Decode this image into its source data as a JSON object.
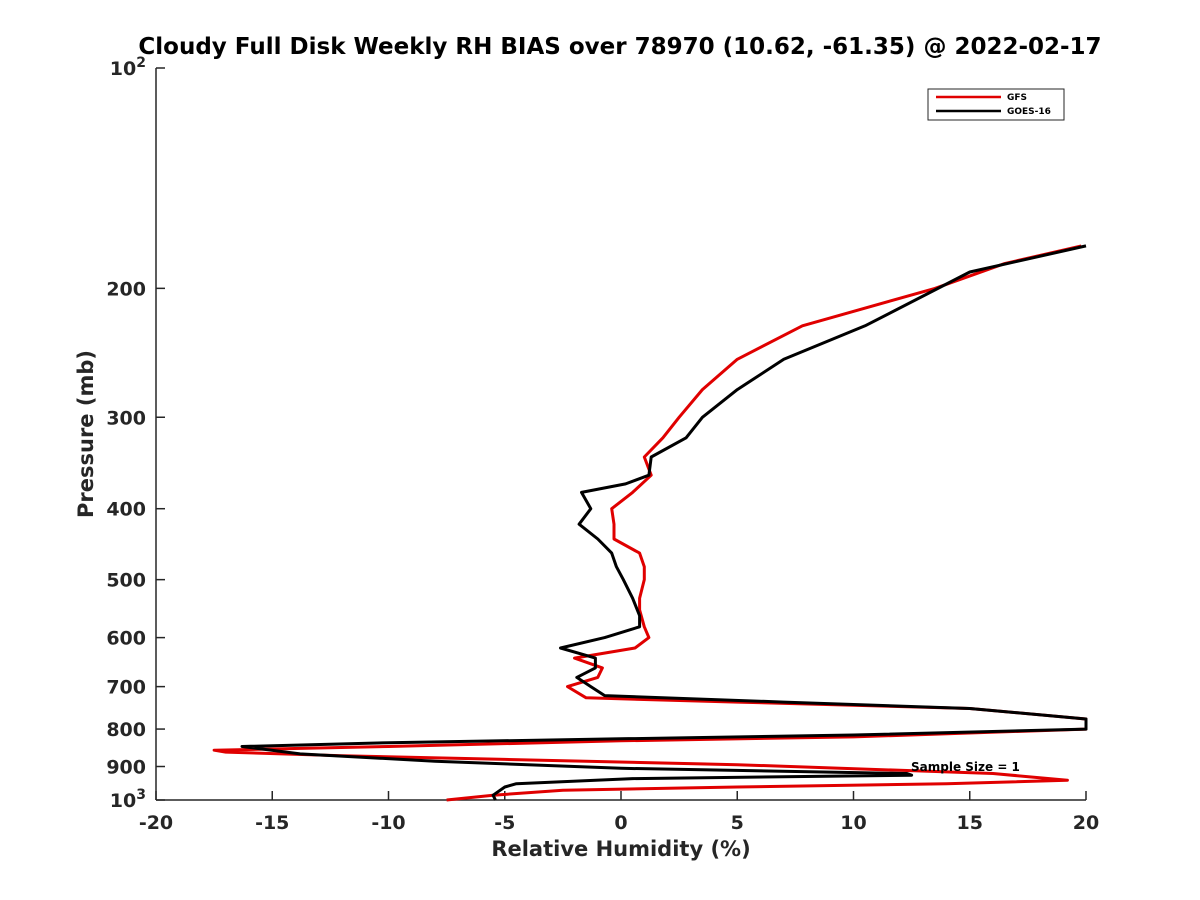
{
  "chart_data": {
    "type": "line",
    "title": "Cloudy Full Disk Weekly RH BIAS over 78970 (10.62, -61.35) @ 2022-02-17",
    "xlabel": "Relative Humidity (%)",
    "ylabel": "Pressure (mb)",
    "xlim": [
      -20,
      20
    ],
    "ylim": [
      100,
      1000
    ],
    "y_scale": "log",
    "y_reversed": true,
    "grid": false,
    "legend_position": "top-right",
    "x_ticks": [
      "-20",
      "-15",
      "-10",
      "-5",
      "0",
      "5",
      "10",
      "15",
      "20"
    ],
    "y_ticks": [
      {
        "base": "10",
        "exp": "2"
      },
      {
        "base": "200",
        "exp": ""
      },
      {
        "base": "300",
        "exp": ""
      },
      {
        "base": "400",
        "exp": ""
      },
      {
        "base": "500",
        "exp": ""
      },
      {
        "base": "600",
        "exp": ""
      },
      {
        "base": "700",
        "exp": ""
      },
      {
        "base": "800",
        "exp": ""
      },
      {
        "base": "900",
        "exp": ""
      },
      {
        "base": "10",
        "exp": "3"
      }
    ],
    "series": [
      {
        "name": "GFS",
        "color": "#e00000",
        "points": [
          [
            19.8,
            175
          ],
          [
            16.5,
            185
          ],
          [
            13.5,
            200
          ],
          [
            7.8,
            225
          ],
          [
            5.0,
            250
          ],
          [
            3.5,
            275
          ],
          [
            2.5,
            300
          ],
          [
            1.8,
            320
          ],
          [
            1.0,
            340
          ],
          [
            1.3,
            360
          ],
          [
            0.5,
            380
          ],
          [
            -0.4,
            400
          ],
          [
            -0.3,
            420
          ],
          [
            -0.3,
            440
          ],
          [
            0.8,
            460
          ],
          [
            1.0,
            480
          ],
          [
            1.0,
            500
          ],
          [
            0.8,
            530
          ],
          [
            0.8,
            550
          ],
          [
            1.0,
            580
          ],
          [
            1.2,
            600
          ],
          [
            0.6,
            620
          ],
          [
            -2.0,
            640
          ],
          [
            -0.8,
            660
          ],
          [
            -1.0,
            680
          ],
          [
            -2.3,
            700
          ],
          [
            -1.5,
            725
          ],
          [
            5.0,
            735
          ],
          [
            15.0,
            750
          ],
          [
            20.0,
            775
          ],
          [
            20.0,
            800
          ],
          [
            10.0,
            820
          ],
          [
            0.0,
            830
          ],
          [
            -10.0,
            845
          ],
          [
            -17.5,
            855
          ],
          [
            -17.0,
            860
          ],
          [
            -12.0,
            870
          ],
          [
            -5.0,
            880
          ],
          [
            5.0,
            895
          ],
          [
            16.0,
            920
          ],
          [
            19.2,
            940
          ],
          [
            14.0,
            950
          ],
          [
            5.0,
            960
          ],
          [
            -2.5,
            970
          ],
          [
            -5.5,
            985
          ],
          [
            -7.5,
            1000
          ]
        ]
      },
      {
        "name": "GOES-16",
        "color": "#000000",
        "points": [
          [
            20.0,
            175
          ],
          [
            15.0,
            190
          ],
          [
            10.5,
            225
          ],
          [
            7.0,
            250
          ],
          [
            5.0,
            275
          ],
          [
            3.5,
            300
          ],
          [
            2.8,
            320
          ],
          [
            1.3,
            340
          ],
          [
            1.2,
            360
          ],
          [
            0.2,
            370
          ],
          [
            -1.7,
            380
          ],
          [
            -1.3,
            400
          ],
          [
            -1.8,
            420
          ],
          [
            -1.0,
            440
          ],
          [
            -0.4,
            460
          ],
          [
            -0.2,
            480
          ],
          [
            0.1,
            500
          ],
          [
            0.5,
            530
          ],
          [
            0.8,
            560
          ],
          [
            0.8,
            580
          ],
          [
            -0.7,
            600
          ],
          [
            -2.6,
            620
          ],
          [
            -1.1,
            640
          ],
          [
            -1.1,
            660
          ],
          [
            -1.9,
            680
          ],
          [
            -1.3,
            700
          ],
          [
            -0.7,
            720
          ],
          [
            7.0,
            735
          ],
          [
            15.0,
            750
          ],
          [
            20.0,
            775
          ],
          [
            20.0,
            800
          ],
          [
            10.0,
            815
          ],
          [
            0.0,
            825
          ],
          [
            -10.0,
            835
          ],
          [
            -16.3,
            845
          ],
          [
            -13.8,
            865
          ],
          [
            -8.0,
            885
          ],
          [
            0.0,
            905
          ],
          [
            12.3,
            920
          ],
          [
            12.5,
            925
          ],
          [
            0.5,
            935
          ],
          [
            -4.5,
            950
          ],
          [
            -5.0,
            960
          ],
          [
            -5.5,
            985
          ],
          [
            -5.4,
            1000
          ]
        ]
      }
    ],
    "annotation": "Sample Size = 1"
  }
}
